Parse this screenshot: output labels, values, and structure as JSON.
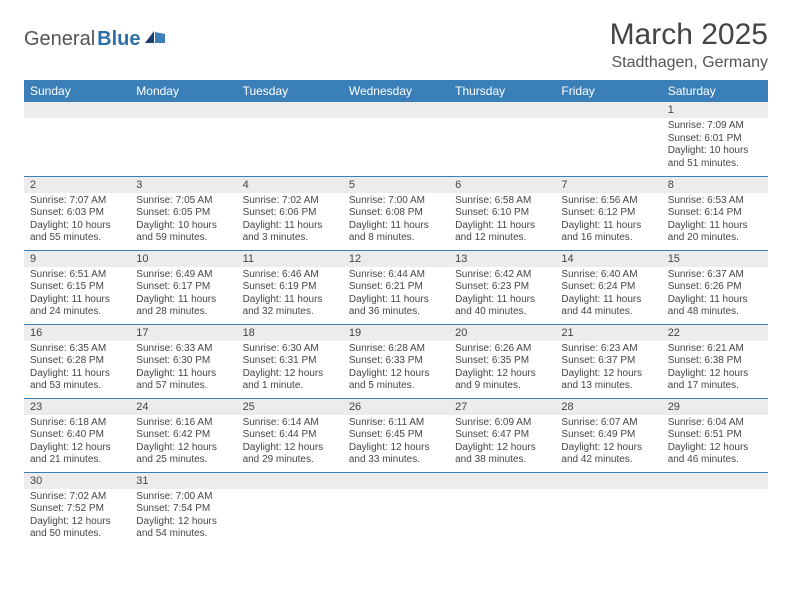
{
  "brand": {
    "part1": "General",
    "part2": "Blue"
  },
  "title": "March 2025",
  "location": "Stadthagen, Germany",
  "header_bg": "#3b7fb8",
  "day_headers": [
    "Sunday",
    "Monday",
    "Tuesday",
    "Wednesday",
    "Thursday",
    "Friday",
    "Saturday"
  ],
  "colors": {
    "header_bg": "#3b7fb8",
    "header_text": "#ffffff",
    "daynum_bg": "#ececec",
    "border": "#3b7fb8",
    "body_text": "#464646"
  },
  "weeks": [
    [
      {
        "n": "",
        "sr": "",
        "ss": "",
        "dl": ""
      },
      {
        "n": "",
        "sr": "",
        "ss": "",
        "dl": ""
      },
      {
        "n": "",
        "sr": "",
        "ss": "",
        "dl": ""
      },
      {
        "n": "",
        "sr": "",
        "ss": "",
        "dl": ""
      },
      {
        "n": "",
        "sr": "",
        "ss": "",
        "dl": ""
      },
      {
        "n": "",
        "sr": "",
        "ss": "",
        "dl": ""
      },
      {
        "n": "1",
        "sr": "Sunrise: 7:09 AM",
        "ss": "Sunset: 6:01 PM",
        "dl": "Daylight: 10 hours and 51 minutes."
      }
    ],
    [
      {
        "n": "2",
        "sr": "Sunrise: 7:07 AM",
        "ss": "Sunset: 6:03 PM",
        "dl": "Daylight: 10 hours and 55 minutes."
      },
      {
        "n": "3",
        "sr": "Sunrise: 7:05 AM",
        "ss": "Sunset: 6:05 PM",
        "dl": "Daylight: 10 hours and 59 minutes."
      },
      {
        "n": "4",
        "sr": "Sunrise: 7:02 AM",
        "ss": "Sunset: 6:06 PM",
        "dl": "Daylight: 11 hours and 3 minutes."
      },
      {
        "n": "5",
        "sr": "Sunrise: 7:00 AM",
        "ss": "Sunset: 6:08 PM",
        "dl": "Daylight: 11 hours and 8 minutes."
      },
      {
        "n": "6",
        "sr": "Sunrise: 6:58 AM",
        "ss": "Sunset: 6:10 PM",
        "dl": "Daylight: 11 hours and 12 minutes."
      },
      {
        "n": "7",
        "sr": "Sunrise: 6:56 AM",
        "ss": "Sunset: 6:12 PM",
        "dl": "Daylight: 11 hours and 16 minutes."
      },
      {
        "n": "8",
        "sr": "Sunrise: 6:53 AM",
        "ss": "Sunset: 6:14 PM",
        "dl": "Daylight: 11 hours and 20 minutes."
      }
    ],
    [
      {
        "n": "9",
        "sr": "Sunrise: 6:51 AM",
        "ss": "Sunset: 6:15 PM",
        "dl": "Daylight: 11 hours and 24 minutes."
      },
      {
        "n": "10",
        "sr": "Sunrise: 6:49 AM",
        "ss": "Sunset: 6:17 PM",
        "dl": "Daylight: 11 hours and 28 minutes."
      },
      {
        "n": "11",
        "sr": "Sunrise: 6:46 AM",
        "ss": "Sunset: 6:19 PM",
        "dl": "Daylight: 11 hours and 32 minutes."
      },
      {
        "n": "12",
        "sr": "Sunrise: 6:44 AM",
        "ss": "Sunset: 6:21 PM",
        "dl": "Daylight: 11 hours and 36 minutes."
      },
      {
        "n": "13",
        "sr": "Sunrise: 6:42 AM",
        "ss": "Sunset: 6:23 PM",
        "dl": "Daylight: 11 hours and 40 minutes."
      },
      {
        "n": "14",
        "sr": "Sunrise: 6:40 AM",
        "ss": "Sunset: 6:24 PM",
        "dl": "Daylight: 11 hours and 44 minutes."
      },
      {
        "n": "15",
        "sr": "Sunrise: 6:37 AM",
        "ss": "Sunset: 6:26 PM",
        "dl": "Daylight: 11 hours and 48 minutes."
      }
    ],
    [
      {
        "n": "16",
        "sr": "Sunrise: 6:35 AM",
        "ss": "Sunset: 6:28 PM",
        "dl": "Daylight: 11 hours and 53 minutes."
      },
      {
        "n": "17",
        "sr": "Sunrise: 6:33 AM",
        "ss": "Sunset: 6:30 PM",
        "dl": "Daylight: 11 hours and 57 minutes."
      },
      {
        "n": "18",
        "sr": "Sunrise: 6:30 AM",
        "ss": "Sunset: 6:31 PM",
        "dl": "Daylight: 12 hours and 1 minute."
      },
      {
        "n": "19",
        "sr": "Sunrise: 6:28 AM",
        "ss": "Sunset: 6:33 PM",
        "dl": "Daylight: 12 hours and 5 minutes."
      },
      {
        "n": "20",
        "sr": "Sunrise: 6:26 AM",
        "ss": "Sunset: 6:35 PM",
        "dl": "Daylight: 12 hours and 9 minutes."
      },
      {
        "n": "21",
        "sr": "Sunrise: 6:23 AM",
        "ss": "Sunset: 6:37 PM",
        "dl": "Daylight: 12 hours and 13 minutes."
      },
      {
        "n": "22",
        "sr": "Sunrise: 6:21 AM",
        "ss": "Sunset: 6:38 PM",
        "dl": "Daylight: 12 hours and 17 minutes."
      }
    ],
    [
      {
        "n": "23",
        "sr": "Sunrise: 6:18 AM",
        "ss": "Sunset: 6:40 PM",
        "dl": "Daylight: 12 hours and 21 minutes."
      },
      {
        "n": "24",
        "sr": "Sunrise: 6:16 AM",
        "ss": "Sunset: 6:42 PM",
        "dl": "Daylight: 12 hours and 25 minutes."
      },
      {
        "n": "25",
        "sr": "Sunrise: 6:14 AM",
        "ss": "Sunset: 6:44 PM",
        "dl": "Daylight: 12 hours and 29 minutes."
      },
      {
        "n": "26",
        "sr": "Sunrise: 6:11 AM",
        "ss": "Sunset: 6:45 PM",
        "dl": "Daylight: 12 hours and 33 minutes."
      },
      {
        "n": "27",
        "sr": "Sunrise: 6:09 AM",
        "ss": "Sunset: 6:47 PM",
        "dl": "Daylight: 12 hours and 38 minutes."
      },
      {
        "n": "28",
        "sr": "Sunrise: 6:07 AM",
        "ss": "Sunset: 6:49 PM",
        "dl": "Daylight: 12 hours and 42 minutes."
      },
      {
        "n": "29",
        "sr": "Sunrise: 6:04 AM",
        "ss": "Sunset: 6:51 PM",
        "dl": "Daylight: 12 hours and 46 minutes."
      }
    ],
    [
      {
        "n": "30",
        "sr": "Sunrise: 7:02 AM",
        "ss": "Sunset: 7:52 PM",
        "dl": "Daylight: 12 hours and 50 minutes."
      },
      {
        "n": "31",
        "sr": "Sunrise: 7:00 AM",
        "ss": "Sunset: 7:54 PM",
        "dl": "Daylight: 12 hours and 54 minutes."
      },
      {
        "n": "",
        "sr": "",
        "ss": "",
        "dl": ""
      },
      {
        "n": "",
        "sr": "",
        "ss": "",
        "dl": ""
      },
      {
        "n": "",
        "sr": "",
        "ss": "",
        "dl": ""
      },
      {
        "n": "",
        "sr": "",
        "ss": "",
        "dl": ""
      },
      {
        "n": "",
        "sr": "",
        "ss": "",
        "dl": ""
      }
    ]
  ]
}
